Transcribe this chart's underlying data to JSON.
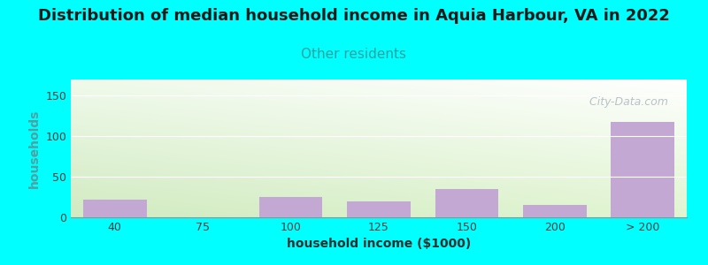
{
  "title": "Distribution of median household income in Aquia Harbour, VA in 2022",
  "subtitle": "Other residents",
  "xlabel": "household income ($1000)",
  "ylabel": "households",
  "categories": [
    "40",
    "75",
    "100",
    "125",
    "150",
    "200",
    "> 200"
  ],
  "values": [
    22,
    0,
    25,
    20,
    35,
    15,
    118
  ],
  "bar_color": "#c4a8d4",
  "background_outer": "#00ffff",
  "background_inner_topleft": "#e8f5e0",
  "background_inner_topright": "#ffffff",
  "background_inner_bottomleft": "#d0eac0",
  "background_inner_bottomright": "#f0f8e8",
  "ylim": [
    0,
    170
  ],
  "yticks": [
    0,
    50,
    100,
    150
  ],
  "title_fontsize": 13,
  "subtitle_fontsize": 11,
  "subtitle_color": "#30a0a0",
  "axis_label_fontsize": 10,
  "tick_fontsize": 9,
  "watermark": "   City-Data.com"
}
